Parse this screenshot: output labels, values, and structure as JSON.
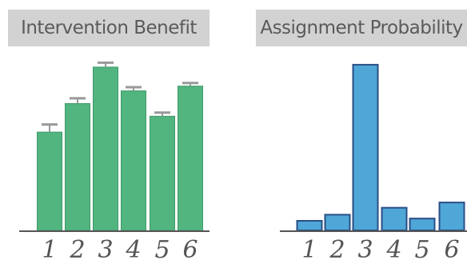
{
  "chart_data": [
    {
      "type": "bar",
      "title": "Intervention Benefit",
      "categories": [
        "1",
        "2",
        "3",
        "4",
        "5",
        "6"
      ],
      "values": [
        0.62,
        0.8,
        1.03,
        0.88,
        0.72,
        0.91
      ],
      "errors": [
        0.048,
        0.033,
        0.028,
        0.023,
        0.023,
        0.02
      ],
      "ylim": [
        0,
        1.1
      ],
      "colors": {
        "bar": "#52b47f",
        "bar_edge": "#3e9a68",
        "error_bar": "#999999",
        "axis": "#555555"
      },
      "grid": false,
      "legend": "none"
    },
    {
      "type": "bar",
      "title": "Assignment Probability",
      "categories": [
        "1",
        "2",
        "3",
        "4",
        "5",
        "6"
      ],
      "values": [
        0.055,
        0.09,
        0.95,
        0.13,
        0.068,
        0.16
      ],
      "ylim": [
        0,
        1.0
      ],
      "colors": {
        "bar": "#4fa7d7",
        "bar_edge": "#2a4e86",
        "axis": "#555555"
      },
      "grid": false,
      "legend": "none"
    }
  ]
}
